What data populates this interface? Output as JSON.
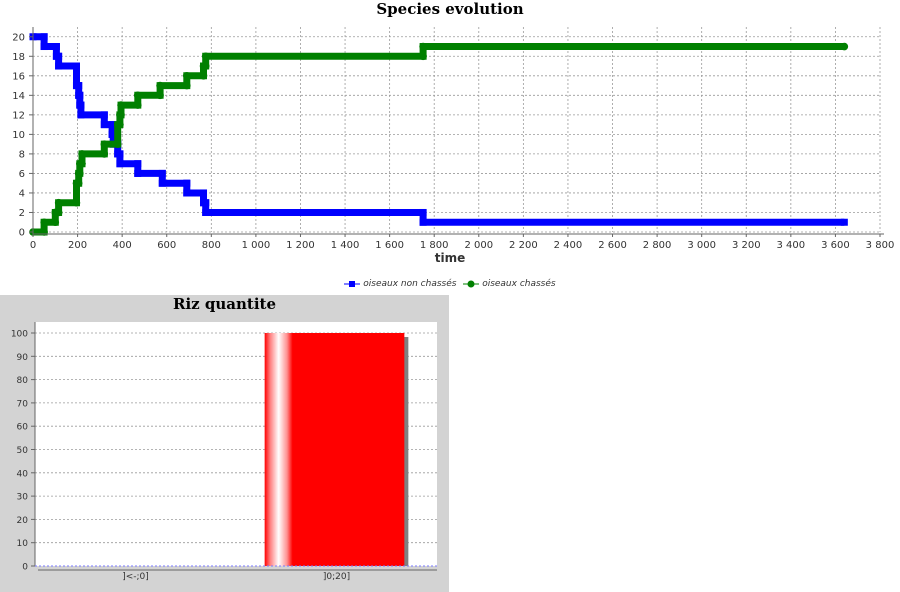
{
  "chart_data": [
    {
      "type": "line",
      "title": "Species evolution",
      "xlabel": "time",
      "ylabel": "",
      "xlim": [
        0,
        3800
      ],
      "ylim": [
        0,
        21
      ],
      "x_ticks": [
        "0",
        "200",
        "400",
        "600",
        "800",
        "1 000",
        "1 200",
        "1 400",
        "1 600",
        "1 800",
        "2 000",
        "2 200",
        "2 400",
        "2 600",
        "2 800",
        "3 000",
        "3 200",
        "3 400",
        "3 600",
        "3 800"
      ],
      "y_ticks": [
        "0",
        "2",
        "4",
        "6",
        "8",
        "10",
        "12",
        "14",
        "16",
        "18",
        "20"
      ],
      "grid": true,
      "legend": "bottom",
      "series": [
        {
          "name": "oiseaux non chassés",
          "color": "#0000ff",
          "marker": "square",
          "points": [
            [
              0,
              20
            ],
            [
              50,
              20
            ],
            [
              50,
              19
            ],
            [
              105,
              19
            ],
            [
              105,
              18
            ],
            [
              115,
              18
            ],
            [
              115,
              17
            ],
            [
              195,
              17
            ],
            [
              195,
              15
            ],
            [
              205,
              15
            ],
            [
              205,
              14
            ],
            [
              210,
              14
            ],
            [
              210,
              13
            ],
            [
              215,
              13
            ],
            [
              215,
              12
            ],
            [
              320,
              12
            ],
            [
              320,
              11
            ],
            [
              355,
              11
            ],
            [
              355,
              10
            ],
            [
              360,
              10
            ],
            [
              360,
              9
            ],
            [
              380,
              9
            ],
            [
              380,
              8
            ],
            [
              390,
              8
            ],
            [
              390,
              7
            ],
            [
              470,
              7
            ],
            [
              470,
              6
            ],
            [
              580,
              6
            ],
            [
              580,
              5
            ],
            [
              690,
              5
            ],
            [
              690,
              4
            ],
            [
              765,
              4
            ],
            [
              765,
              3
            ],
            [
              775,
              3
            ],
            [
              775,
              2
            ],
            [
              1750,
              2
            ],
            [
              1750,
              1
            ],
            [
              3640,
              1
            ]
          ]
        },
        {
          "name": "oiseaux chassés",
          "color": "#008000",
          "marker": "circle",
          "points": [
            [
              0,
              0
            ],
            [
              50,
              0
            ],
            [
              50,
              1
            ],
            [
              100,
              1
            ],
            [
              100,
              2
            ],
            [
              115,
              2
            ],
            [
              115,
              3
            ],
            [
              195,
              3
            ],
            [
              195,
              5
            ],
            [
              205,
              5
            ],
            [
              205,
              6
            ],
            [
              210,
              6
            ],
            [
              210,
              7
            ],
            [
              220,
              7
            ],
            [
              220,
              8
            ],
            [
              320,
              8
            ],
            [
              320,
              9
            ],
            [
              380,
              9
            ],
            [
              380,
              11
            ],
            [
              390,
              11
            ],
            [
              390,
              12
            ],
            [
              395,
              12
            ],
            [
              395,
              13
            ],
            [
              470,
              13
            ],
            [
              470,
              14
            ],
            [
              570,
              14
            ],
            [
              570,
              15
            ],
            [
              690,
              15
            ],
            [
              690,
              16
            ],
            [
              765,
              16
            ],
            [
              765,
              17
            ],
            [
              775,
              17
            ],
            [
              775,
              18
            ],
            [
              1750,
              18
            ],
            [
              1750,
              19
            ],
            [
              3640,
              19
            ]
          ]
        }
      ]
    },
    {
      "type": "bar",
      "title": "Riz quantite",
      "xlabel": "",
      "ylabel": "",
      "ylim": [
        0,
        100
      ],
      "y_ticks": [
        "0",
        "10",
        "20",
        "30",
        "40",
        "50",
        "60",
        "70",
        "80",
        "90",
        "100"
      ],
      "categories": [
        "]<-;0]",
        "]0;20]"
      ],
      "values": [
        0,
        100
      ],
      "bar_color": "#ff0000",
      "grid": true
    }
  ]
}
